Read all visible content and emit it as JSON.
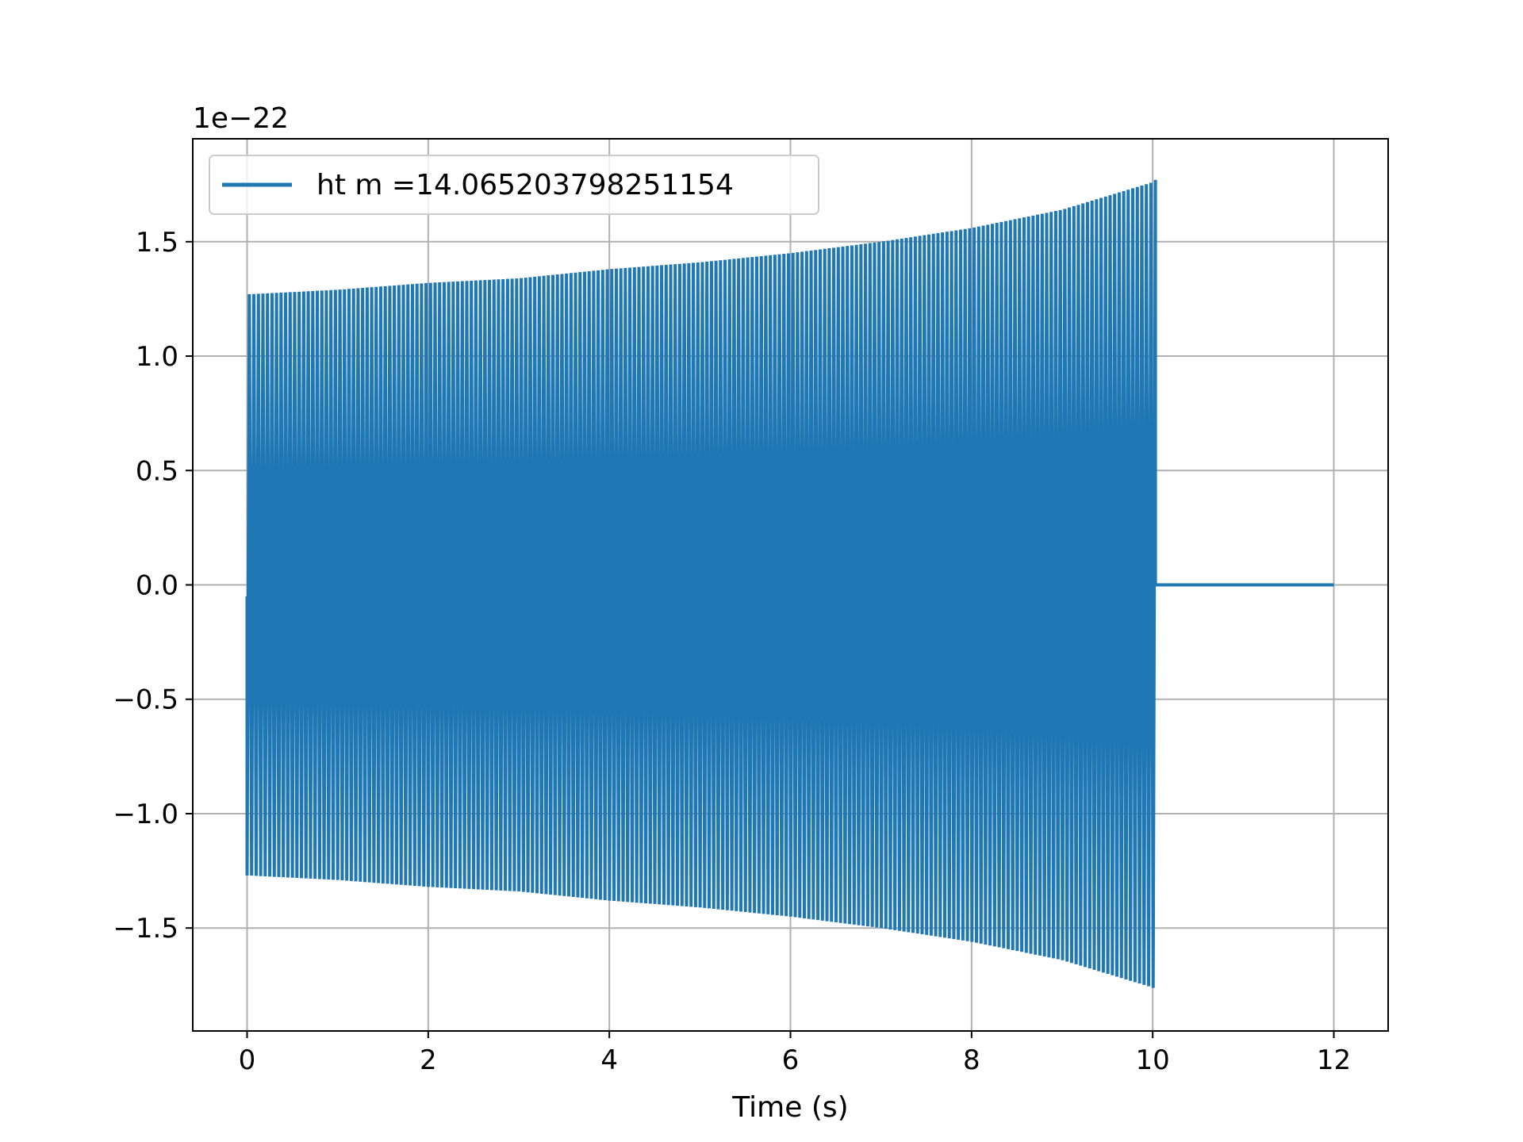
{
  "chart_data": {
    "type": "line",
    "xlabel": "Time (s)",
    "ylabel": "",
    "offset_text": "1e−22",
    "xlim": [
      -0.6,
      12.6
    ],
    "ylim": [
      -1.95,
      1.95
    ],
    "x_ticks": [
      0,
      2,
      4,
      6,
      8,
      10,
      12
    ],
    "x_tick_labels": [
      "0",
      "2",
      "4",
      "6",
      "8",
      "10",
      "12"
    ],
    "y_ticks": [
      -1.5,
      -1.0,
      -0.5,
      0.0,
      0.5,
      1.0,
      1.5
    ],
    "y_tick_labels": [
      "−1.5",
      "−1.0",
      "−0.5",
      "0.0",
      "0.5",
      "1.0",
      "1.5"
    ],
    "grid": true,
    "legend_position": "top-left",
    "series": [
      {
        "name": "ht m =14.065203798251154",
        "color": "#1f77b4",
        "signal_start": 0.0,
        "signal_end": 10.03,
        "x_end": 12.0,
        "envelope": {
          "t": [
            0.0,
            1.0,
            2.0,
            3.0,
            4.0,
            5.0,
            6.0,
            7.0,
            8.0,
            9.0,
            10.0,
            10.03
          ],
          "amplitude": [
            1.27,
            1.29,
            1.32,
            1.34,
            1.38,
            1.41,
            1.45,
            1.5,
            1.56,
            1.64,
            1.76,
            1.77
          ]
        },
        "cycles_per_second": 20
      }
    ]
  }
}
